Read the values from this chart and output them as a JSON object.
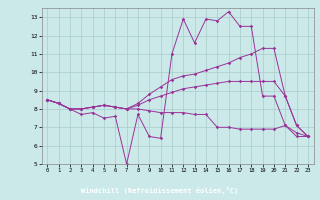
{
  "xlabel": "Windchill (Refroidissement éolien,°C)",
  "background_color": "#cbe9e9",
  "xlabel_bg_color": "#7744aa",
  "grid_color": "#aacccc",
  "line_color": "#993399",
  "xlim": [
    -0.5,
    23.5
  ],
  "ylim": [
    5,
    13.5
  ],
  "xticks": [
    0,
    1,
    2,
    3,
    4,
    5,
    6,
    7,
    8,
    9,
    10,
    11,
    12,
    13,
    14,
    15,
    16,
    17,
    18,
    19,
    20,
    21,
    22,
    23
  ],
  "yticks": [
    5,
    6,
    7,
    8,
    9,
    10,
    11,
    12,
    13
  ],
  "lines": [
    {
      "x": [
        0,
        1,
        2,
        3,
        4,
        5,
        6,
        7,
        8,
        9,
        10,
        11,
        12,
        13,
        14,
        15,
        16,
        17,
        18,
        19,
        20,
        21,
        22,
        23
      ],
      "y": [
        8.5,
        8.3,
        8.0,
        7.7,
        7.8,
        7.5,
        7.6,
        5.0,
        7.7,
        6.5,
        6.4,
        11.0,
        12.9,
        11.6,
        12.9,
        12.8,
        13.3,
        12.5,
        12.5,
        8.7,
        8.7,
        7.1,
        6.5,
        6.5
      ]
    },
    {
      "x": [
        0,
        1,
        2,
        3,
        4,
        5,
        6,
        7,
        8,
        9,
        10,
        11,
        12,
        13,
        14,
        15,
        16,
        17,
        18,
        19,
        20,
        21,
        22,
        23
      ],
      "y": [
        8.5,
        8.3,
        8.0,
        8.0,
        8.1,
        8.2,
        8.1,
        8.0,
        8.3,
        8.8,
        9.2,
        9.6,
        9.8,
        9.9,
        10.1,
        10.3,
        10.5,
        10.8,
        11.0,
        11.3,
        11.3,
        8.7,
        7.1,
        6.5
      ]
    },
    {
      "x": [
        0,
        1,
        2,
        3,
        4,
        5,
        6,
        7,
        8,
        9,
        10,
        11,
        12,
        13,
        14,
        15,
        16,
        17,
        18,
        19,
        20,
        21,
        22,
        23
      ],
      "y": [
        8.5,
        8.3,
        8.0,
        8.0,
        8.1,
        8.2,
        8.1,
        8.0,
        8.0,
        7.9,
        7.8,
        7.8,
        7.8,
        7.7,
        7.7,
        7.0,
        7.0,
        6.9,
        6.9,
        6.9,
        6.9,
        7.1,
        6.7,
        6.5
      ]
    },
    {
      "x": [
        0,
        1,
        2,
        3,
        4,
        5,
        6,
        7,
        8,
        9,
        10,
        11,
        12,
        13,
        14,
        15,
        16,
        17,
        18,
        19,
        20,
        21,
        22,
        23
      ],
      "y": [
        8.5,
        8.3,
        8.0,
        8.0,
        8.1,
        8.2,
        8.1,
        8.0,
        8.2,
        8.5,
        8.7,
        8.9,
        9.1,
        9.2,
        9.3,
        9.4,
        9.5,
        9.5,
        9.5,
        9.5,
        9.5,
        8.7,
        7.1,
        6.5
      ]
    }
  ]
}
